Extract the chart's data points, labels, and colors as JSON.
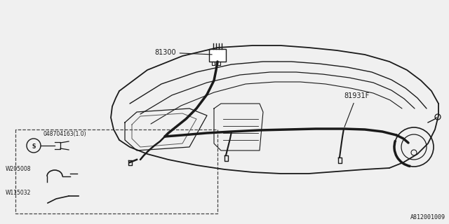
{
  "background_color": "#f0f0f0",
  "line_color": "#1a1a1a",
  "thin_line_color": "#555555",
  "diagram_id": "A812001009",
  "label_81300": "81300",
  "label_81931F": "81931F",
  "label_screw": "048704163(1.0)",
  "label_W205008": "W205008",
  "label_W115032": "W115032"
}
